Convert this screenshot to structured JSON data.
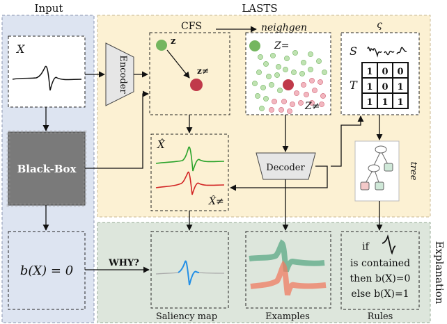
{
  "labels": {
    "input": "Input",
    "lasts": "LASTS",
    "explanation": "Explanation",
    "x": "X",
    "encoder": "Encoder",
    "decoder": "Decoder",
    "black_box": "Black-Box",
    "cfs": "CFS",
    "neighgen": "neighgen",
    "varsigma": "ς",
    "z": "z",
    "z_neq": "z≠",
    "Z_eq": "Z=",
    "Z_neq": "Z≠",
    "S": "S",
    "T": "T",
    "tree": "tree",
    "x_hat": "X̂",
    "x_hat_neq": "X̂≠",
    "bx_eq_zero": "b(X) = 0",
    "why": "WHY?",
    "saliency_map": "Saliency map",
    "examples": "Examples",
    "rules": "Rules"
  },
  "matrix": [
    [
      "1",
      "0",
      "0"
    ],
    [
      "1",
      "0",
      "1"
    ],
    [
      "1",
      "1",
      "1"
    ]
  ],
  "rules": {
    "line1": "if",
    "line2": "is contained",
    "line3": "then b(X)=0",
    "line4": "else b(X)=1"
  },
  "colors": {
    "input_panel": "#dde4f1",
    "lasts_panel": "#fcf1d3",
    "explanation_panel": "#dde6dc",
    "black_box": "#7a7a7a",
    "green_point": "#74b65f",
    "red_point": "#c03a4a",
    "green_series": "#2aa32a",
    "red_series": "#d22424",
    "saliency_blue": "#2490e6",
    "tree_node_red": "#f4c9c9",
    "tree_node_green": "#cfe8d8"
  }
}
